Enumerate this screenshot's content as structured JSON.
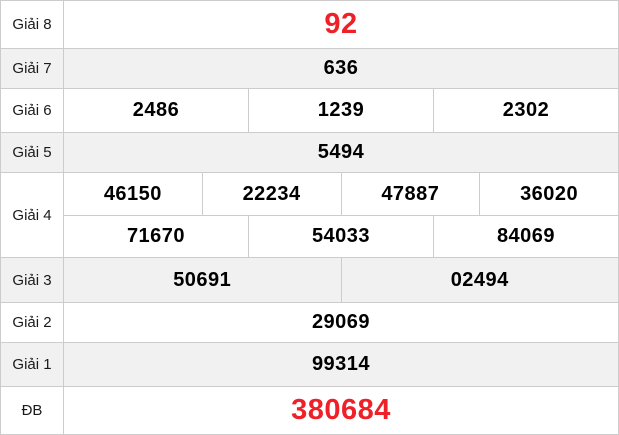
{
  "colors": {
    "highlight_red": "#ee2129",
    "shaded_row_bg": "#f1f1f1",
    "border": "#cccccc",
    "number_text": "#000000",
    "label_text": "#1a1a1a"
  },
  "rows": [
    {
      "label": "Giải 8",
      "values": [
        "92"
      ]
    },
    {
      "label": "Giải 7",
      "values": [
        "636"
      ]
    },
    {
      "label": "Giải 6",
      "values": [
        "2486",
        "1239",
        "2302"
      ]
    },
    {
      "label": "Giải 5",
      "values": [
        "5494"
      ]
    },
    {
      "label": "Giải 4",
      "values": [
        "46150",
        "22234",
        "47887",
        "36020",
        "71670",
        "54033",
        "84069"
      ]
    },
    {
      "label": "Giải 3",
      "values": [
        "50691",
        "02494"
      ]
    },
    {
      "label": "Giải 2",
      "values": [
        "29069"
      ]
    },
    {
      "label": "Giải 1",
      "values": [
        "99314"
      ]
    },
    {
      "label": "ĐB",
      "values": [
        "380684"
      ]
    }
  ]
}
